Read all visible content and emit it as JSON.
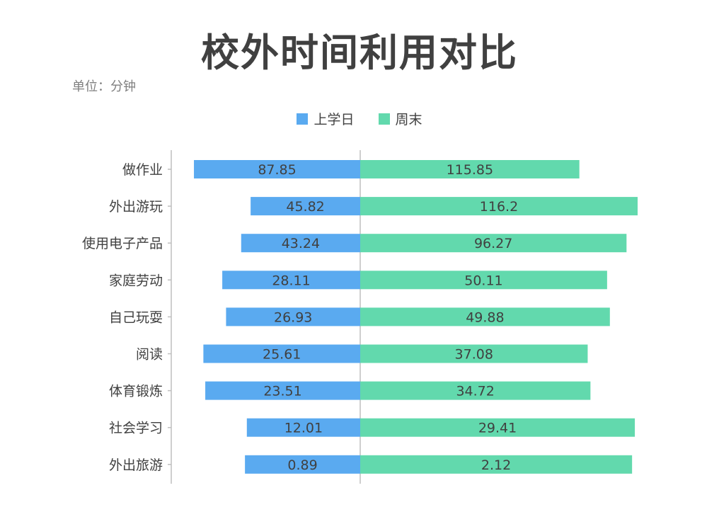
{
  "chart_data": {
    "type": "bar",
    "orientation": "horizontal-diverging",
    "title": "校外时间利用对比",
    "unit_label": "单位：分钟",
    "categories": [
      "做作业",
      "外出游玩",
      "使用电子产品",
      "家庭劳动",
      "自己玩耍",
      "阅读",
      "体育锻炼",
      "社会学习",
      "外出旅游"
    ],
    "series": [
      {
        "name": "上学日",
        "values": [
          87.85,
          45.82,
          43.24,
          28.11,
          26.93,
          25.61,
          23.51,
          12.01,
          0.89
        ],
        "labels": [
          "87.85",
          "45.82",
          "43.24",
          "28.11",
          "26.93",
          "25.61",
          "23.51",
          "12.01",
          "0.89"
        ],
        "color": "#5aaaf0",
        "rel_length": [
          0.88,
          0.58,
          0.63,
          0.73,
          0.71,
          0.83,
          0.82,
          0.6,
          0.61
        ]
      },
      {
        "name": "周末",
        "values": [
          115.85,
          116.2,
          96.27,
          50.11,
          49.88,
          37.08,
          34.72,
          29.41,
          2.12
        ],
        "labels": [
          "115.85",
          "116.2",
          "96.27",
          "50.11",
          "49.88",
          "37.08",
          "34.72",
          "29.41",
          "2.12"
        ],
        "color": "#62d9ad",
        "rel_length": [
          0.79,
          1.0,
          0.96,
          0.89,
          0.9,
          0.82,
          0.83,
          0.99,
          0.98
        ]
      }
    ],
    "legend_position": "top-center",
    "grid": false
  }
}
